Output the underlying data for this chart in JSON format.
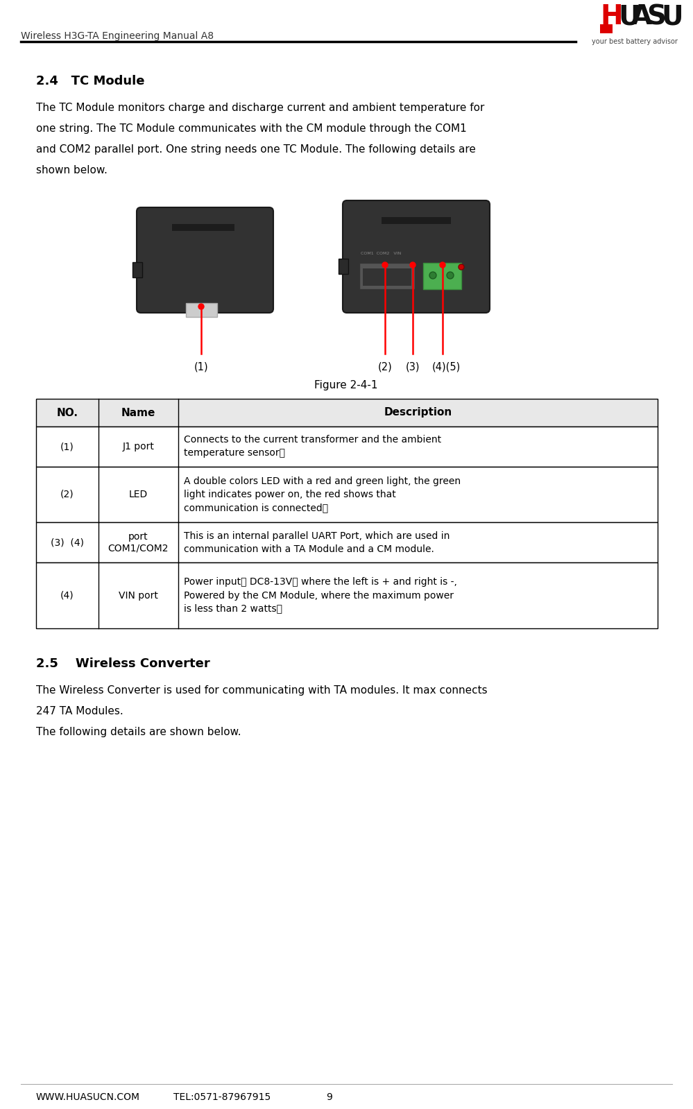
{
  "page_title": "Wireless H3G-TA Engineering Manual A8",
  "footer_left": "WWW.HUASUCN.COM",
  "footer_tel": "TEL:0571-87967915",
  "footer_page": "9",
  "section_title": "2.4   TC Module",
  "para1": "The TC Module monitors charge and discharge current and ambient temperature for",
  "para2": "one string. The TC Module communicates with the CM module through the COM1",
  "para3": "and COM2 parallel port. One string needs one TC Module. The following details are",
  "para4": "shown below.",
  "figure_caption": "Figure 2-4-1",
  "col_headers": [
    "NO.",
    "Name",
    "Description"
  ],
  "row1_no": "(1)",
  "row1_name": "J1 port",
  "row1_desc": "Connects to the current transformer and the ambient\ntemperature sensor。",
  "row2_no": "(2)",
  "row2_name": "LED",
  "row2_desc": "A double colors LED with a red and green light, the green\nlight indicates power on, the red shows that\ncommunication is connected。",
  "row3_no": "(3)  (4)",
  "row3_name": "COM1/COM2\nport",
  "row3_desc": "This is an internal parallel UART Port, which are used in\ncommunication with a TA Module and a CM module.",
  "row4_no": "(4)",
  "row4_name": "VIN port",
  "row4_desc": "Power input， DC8-13V， where the left is + and right is -,\nPowered by the CM Module, where the maximum power\nis less than 2 watts。",
  "section2_title": "2.5    Wireless Converter",
  "section2_p1": "The Wireless Converter is used for communicating with TA modules. It max connects",
  "section2_p2": "247 TA Modules.",
  "section2_p3": "The following details are shown below.",
  "bg_color": "#ffffff",
  "text_color": "#000000",
  "table_border_color": "#000000"
}
